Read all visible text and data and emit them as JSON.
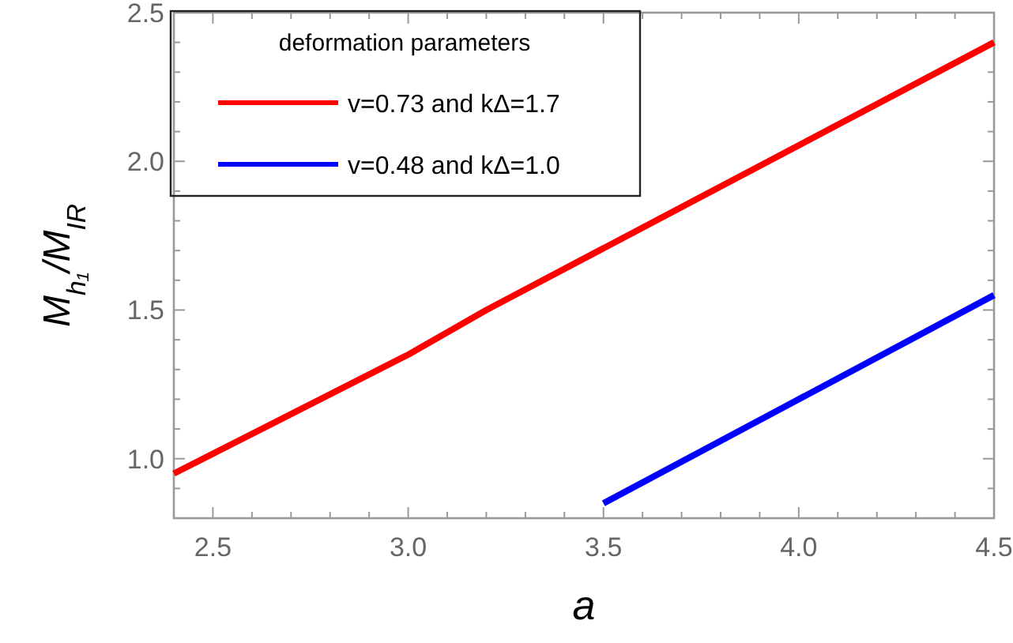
{
  "chart_data": {
    "type": "line",
    "xlabel": "a",
    "ylabel": "M$_{h₁}$/M$_{IR}$",
    "legend_title": "deformation parameters",
    "legend": "top left",
    "grid": false,
    "xlim": [
      2.4,
      4.5
    ],
    "ylim": [
      0.8,
      2.5
    ],
    "xticks": [
      2.5,
      {
        "value": 2.6,
        "label": null
      },
      {
        "value": 2.7,
        "label": null
      },
      {
        "value": 2.8,
        "label": null
      },
      {
        "value": 2.9,
        "label": null
      },
      {
        "value": 3.0,
        "label": "3.0"
      },
      {
        "value": 3.1,
        "label": null
      },
      {
        "value": 3.2,
        "label": null
      },
      {
        "value": 3.3,
        "label": null
      },
      {
        "value": 3.4,
        "label": null
      },
      3.5,
      {
        "value": 3.6,
        "label": null
      },
      {
        "value": 3.7,
        "label": null
      },
      {
        "value": 3.8,
        "label": null
      },
      {
        "value": 3.9,
        "label": null
      },
      {
        "value": 4.0,
        "label": "4.0"
      },
      {
        "value": 4.1,
        "label": null
      },
      {
        "value": 4.2,
        "label": null
      },
      {
        "value": 4.3,
        "label": null
      },
      {
        "value": 4.4,
        "label": null
      },
      4.5
    ],
    "yticks": [
      {
        "value": 0.9,
        "label": null
      },
      {
        "value": 1.0,
        "label": "1.0"
      },
      {
        "value": 1.1,
        "label": null
      },
      {
        "value": 1.2,
        "label": null
      },
      {
        "value": 1.3,
        "label": null
      },
      {
        "value": 1.4,
        "label": null
      },
      1.5,
      {
        "value": 1.6,
        "label": null
      },
      {
        "value": 1.7,
        "label": null
      },
      {
        "value": 1.8,
        "label": null
      },
      {
        "value": 1.9,
        "label": null
      },
      {
        "value": 2.0,
        "label": "2.0"
      },
      {
        "value": 2.1,
        "label": null
      },
      {
        "value": 2.2,
        "label": null
      },
      {
        "value": 2.3,
        "label": null
      },
      {
        "value": 2.4,
        "label": null
      },
      2.5
    ],
    "series": [
      {
        "name": "v=0.73 and kΔ=1.7",
        "color": "#ff0000",
        "x": [
          2.4,
          3.0,
          3.2,
          4.5
        ],
        "values": [
          0.95,
          1.35,
          1.5,
          2.4
        ]
      },
      {
        "name": "v=0.48 and kΔ=1.0",
        "color": "#0000ff",
        "x": [
          3.5,
          4.5
        ],
        "values": [
          0.85,
          1.55
        ]
      }
    ]
  }
}
